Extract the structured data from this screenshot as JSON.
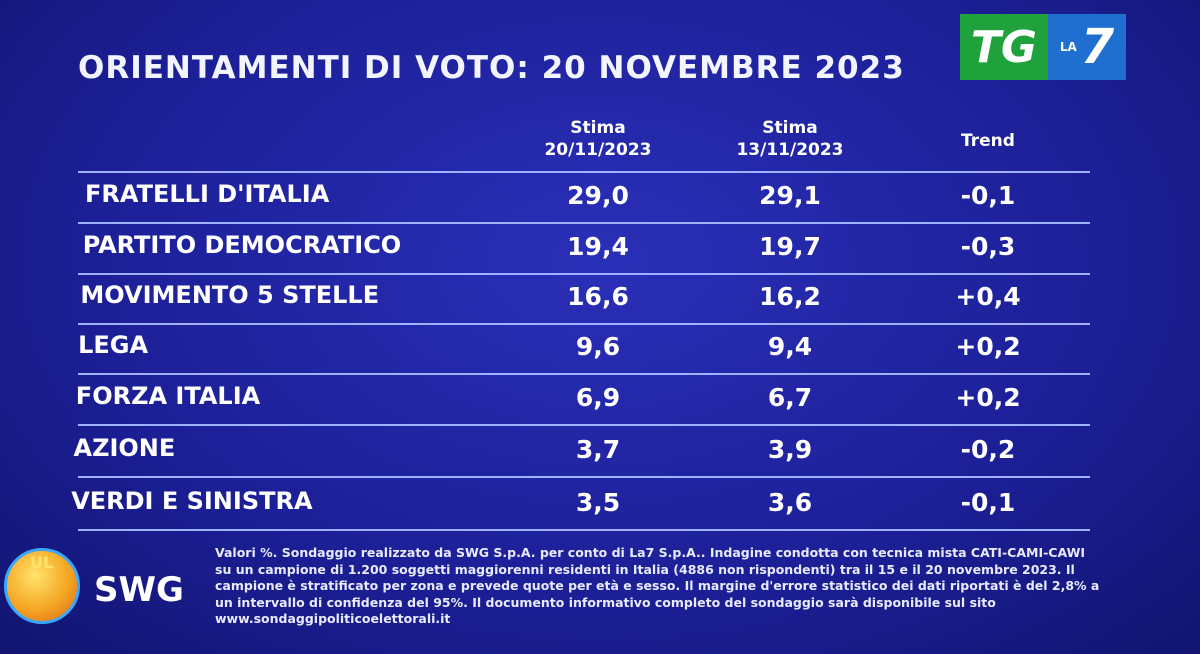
{
  "header": {
    "title": "ORIENTAMENTI DI VOTO: 20 NOVEMBRE 2023",
    "logo": {
      "tg": "TG",
      "la": "LA",
      "seven": "7"
    }
  },
  "table": {
    "columns": [
      [
        "Stima",
        "20/11/2023"
      ],
      [
        "Stima",
        "13/11/2023"
      ],
      [
        "Trend"
      ]
    ],
    "rows": [
      [
        "FRATELLI D'ITALIA",
        "29,0",
        "29,1",
        "-0,1"
      ],
      [
        "PARTITO DEMOCRATICO",
        "19,4",
        "19,7",
        "-0,3"
      ],
      [
        "MOVIMENTO 5 STELLE",
        "16,6",
        "16,2",
        "+0,4"
      ],
      [
        "LEGA",
        "9,6",
        "9,4",
        "+0,2"
      ],
      [
        "FORZA ITALIA",
        "6,9",
        "6,7",
        "+0,2"
      ],
      [
        "AZIONE",
        "3,7",
        "3,9",
        "-0,2"
      ],
      [
        "VERDI E SINISTRA",
        "3,5",
        "3,6",
        "-0,1"
      ]
    ]
  },
  "footer": {
    "logo": "SWG",
    "logo_badge": "UL",
    "note": "Valori %. Sondaggio realizzato da SWG S.p.A. per conto di La7 S.p.A.. Indagine condotta con tecnica mista CATI-CAMI-CAWI su un campione di 1.200 soggetti maggiorenni residenti in Italia (4886 non rispondenti) tra il 15 e il 20 novembre 2023. Il campione è stratificato per zona e prevede quote per età e sesso. Il margine d'errore statistico dei dati riportati è del 2,8% a un intervallo di confidenza del 95%. Il documento informativo completo del sondaggio sarà disponibile sul sito www.sondaggipoliticoelettorali.it"
  }
}
